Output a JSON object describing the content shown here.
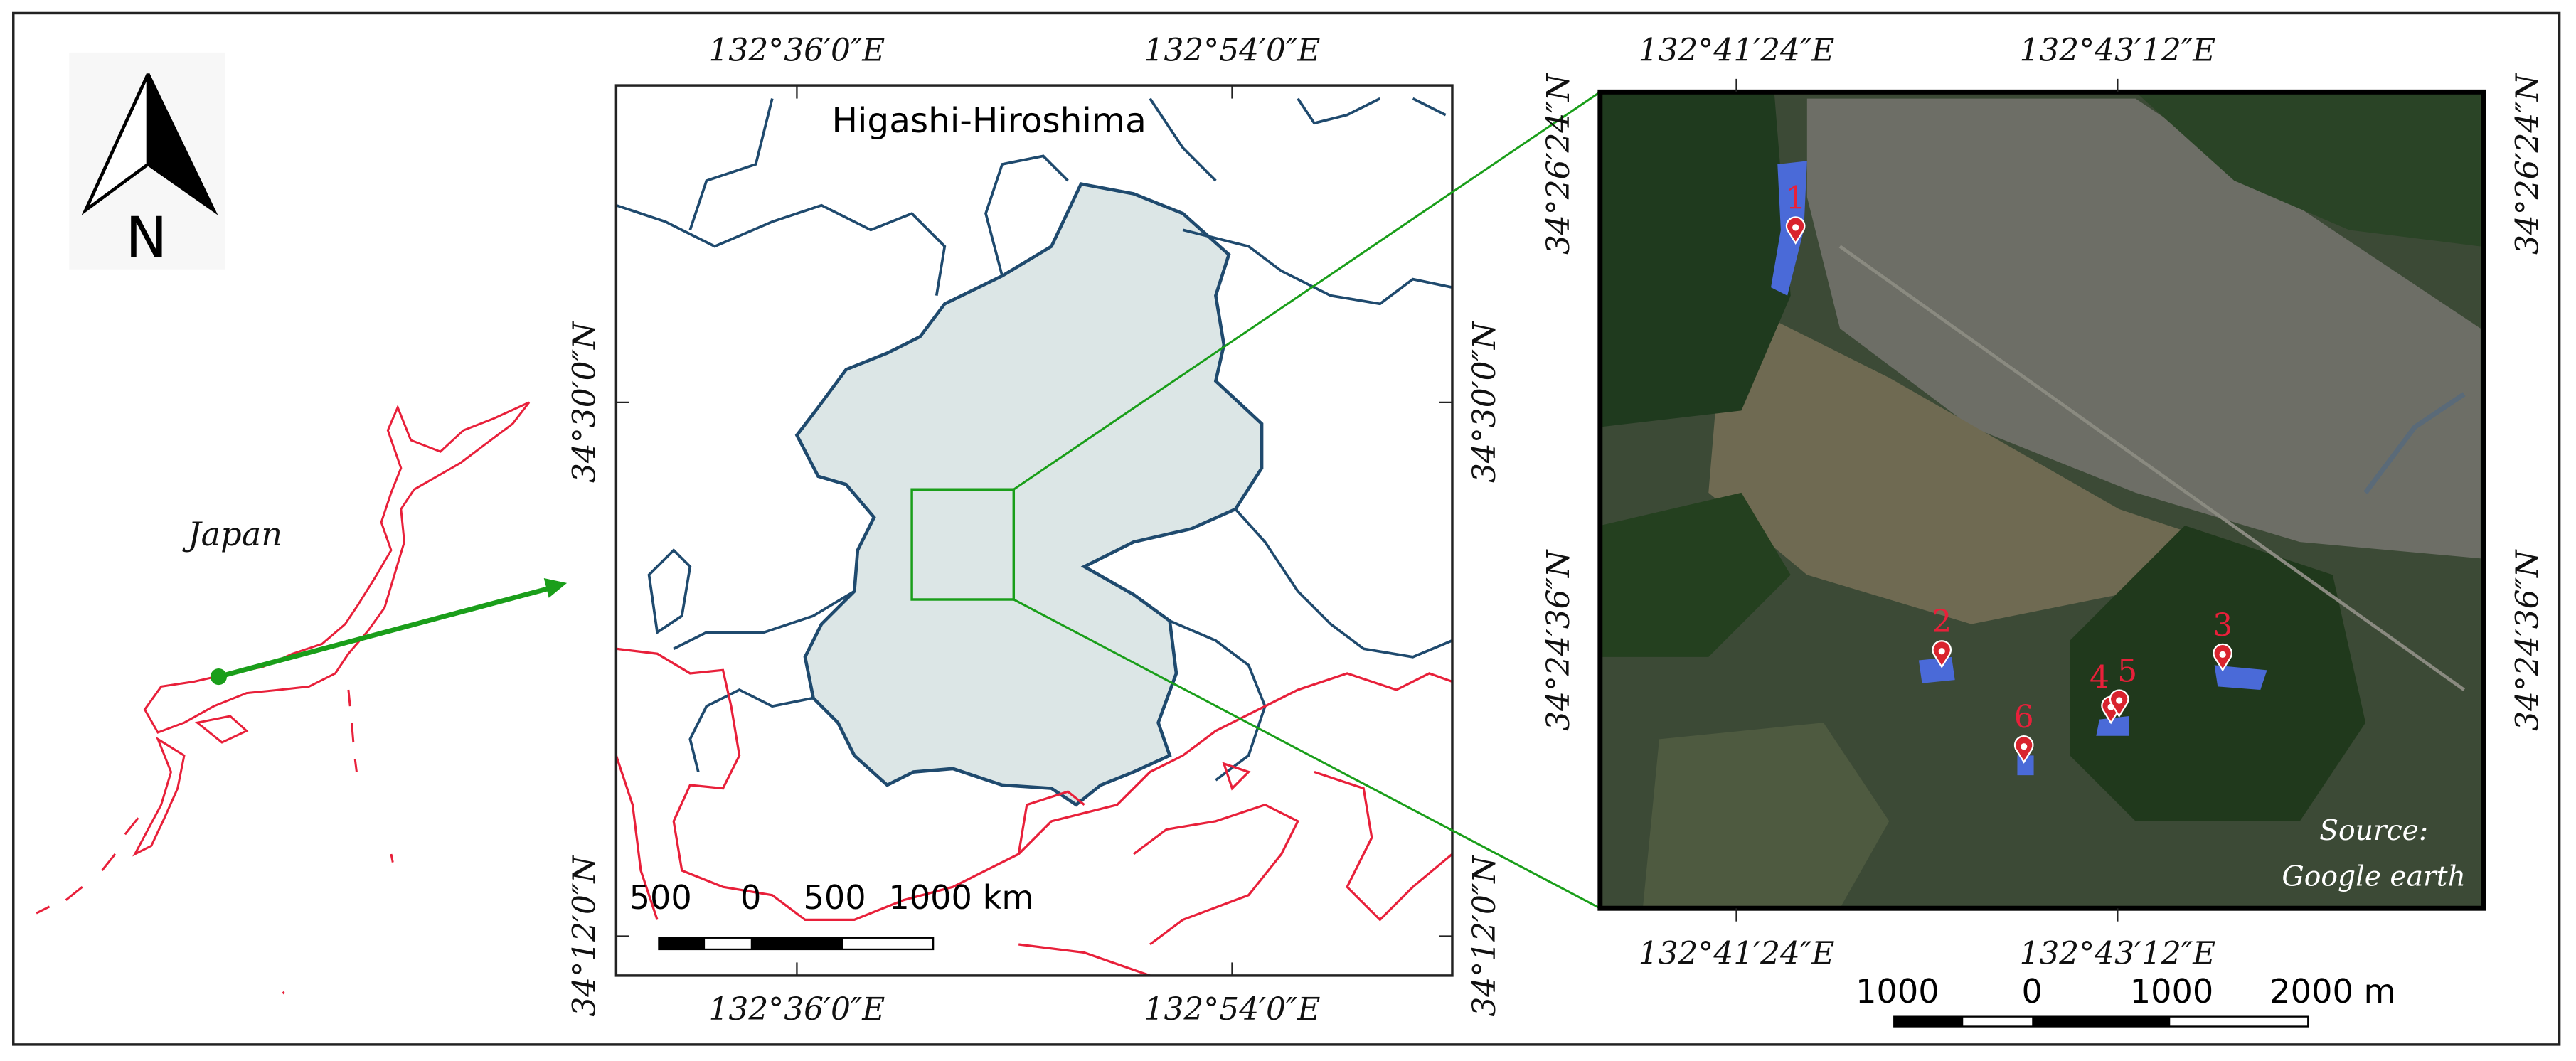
{
  "compass": {
    "label": "N"
  },
  "japan_map": {
    "label": "Japan"
  },
  "regional_map": {
    "title": "Higashi-Hiroshima",
    "top_labels": [
      "132°36′0″E",
      "132°54′0″E"
    ],
    "bottom_labels": [
      "132°36′0″E",
      "132°54′0″E"
    ],
    "left_labels": [
      "34°30′0″N",
      "34°12′0″N"
    ],
    "right_labels": [
      "34°30′0″N",
      "34°12′0″N"
    ],
    "scale_bar": [
      "500",
      "0",
      "500",
      "1000 km"
    ]
  },
  "satellite_map": {
    "top_labels": [
      "132°41′24″E",
      "132°43′12″E"
    ],
    "bottom_labels": [
      "132°41′24″E",
      "132°43′12″E"
    ],
    "left_labels": [
      "34°26′24″N",
      "34°24′36″N"
    ],
    "right_labels": [
      "34°26′24″N",
      "34°24′36″N"
    ],
    "sites": [
      "1",
      "2",
      "3",
      "4",
      "5",
      "6"
    ],
    "source": [
      "Source:",
      "Google earth"
    ],
    "scale_bar": [
      "1000",
      "0",
      "1000",
      "2000 m"
    ]
  }
}
